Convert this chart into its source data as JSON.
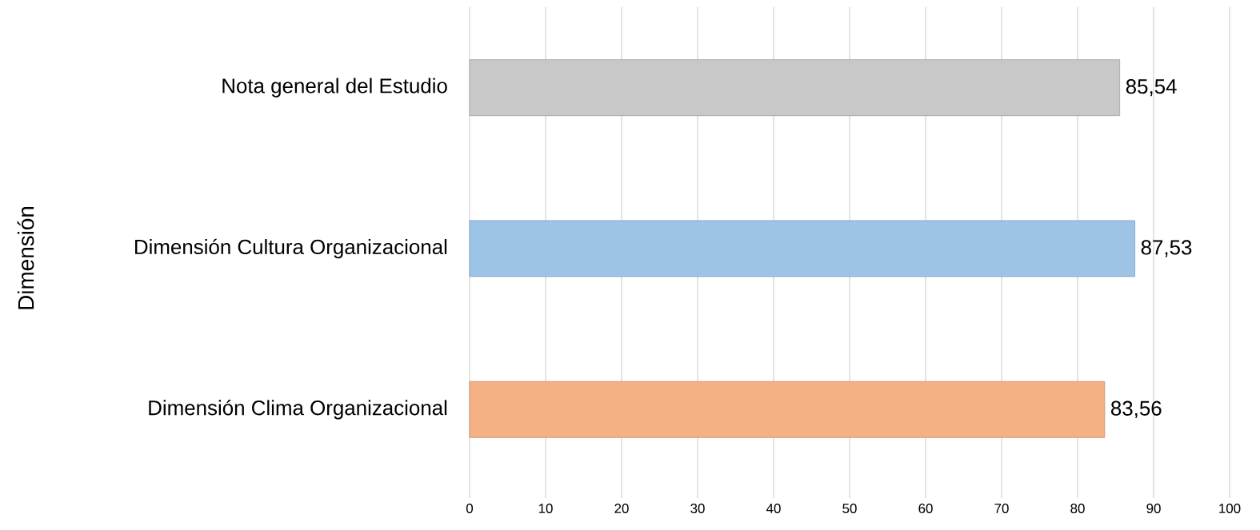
{
  "chart_data": {
    "type": "bar",
    "orientation": "horizontal",
    "ylabel": "Dimensión",
    "categories": [
      "Nota general del Estudio",
      "Dimensión Cultura Organizacional",
      "Dimensión Clima Organizacional"
    ],
    "values": [
      85.54,
      87.53,
      83.56
    ],
    "colors": [
      "#c8c8c8",
      "#9dc3e6",
      "#f4b183"
    ],
    "value_labels": [
      "85,54",
      "87,53",
      "83,56"
    ],
    "xlim": [
      0,
      100
    ],
    "xticks": [
      0,
      10,
      20,
      30,
      40,
      50,
      60,
      70,
      80,
      90,
      100
    ],
    "grid": "x"
  }
}
